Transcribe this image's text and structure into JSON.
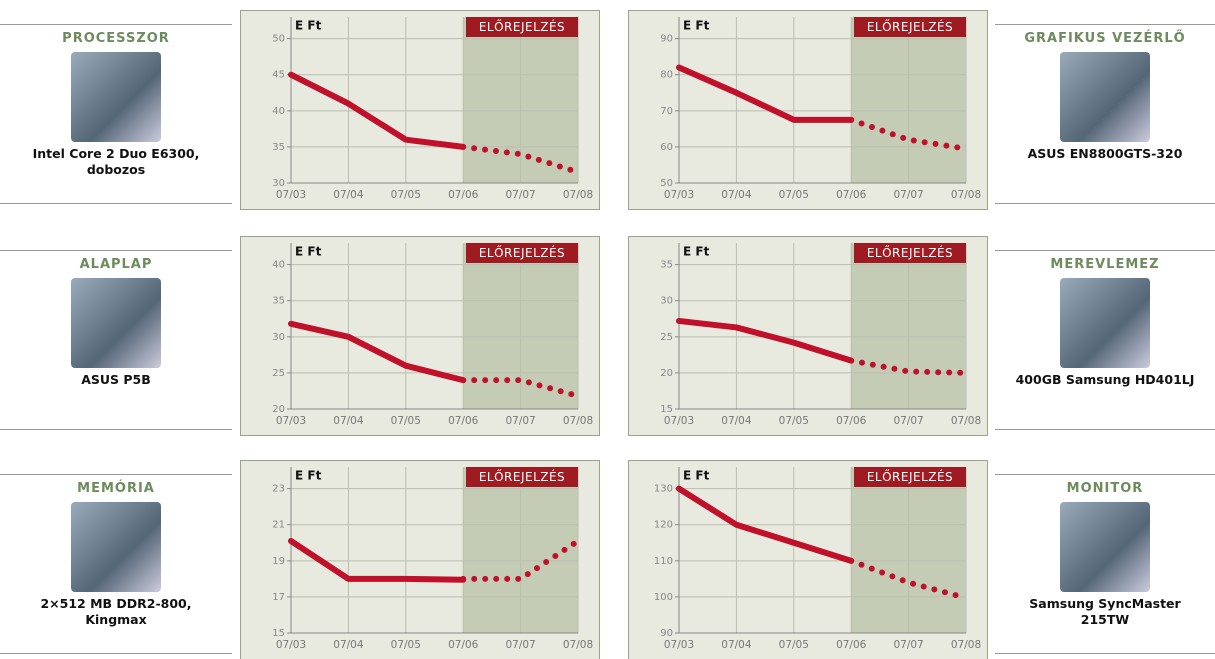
{
  "chart_data": [
    {
      "type": "line",
      "title": "PROCESSZOR",
      "subtitle": "Intel Core 2 Duo E6300, dobozos",
      "ylabel": "E Ft",
      "annotation": "ELŐREJELZÉS",
      "categories": [
        "07/03",
        "07/04",
        "07/05",
        "07/06",
        "07/07",
        "07/08"
      ],
      "ylim": [
        30,
        53
      ],
      "yticks": [
        30,
        35,
        40,
        45,
        50
      ],
      "grid": true,
      "series": [
        {
          "color": "#c0102a",
          "style": "solid",
          "values": [
            45,
            41,
            36,
            35,
            null,
            null
          ]
        },
        {
          "color": "#c0102a",
          "style": "dotted",
          "values": [
            null,
            null,
            null,
            35,
            34,
            31.5
          ]
        }
      ]
    },
    {
      "type": "line",
      "title": "GRAFIKUS VEZÉRLŐ",
      "subtitle": "ASUS EN8800GTS-320",
      "ylabel": "E Ft",
      "annotation": "ELŐREJELZÉS",
      "categories": [
        "07/03",
        "07/04",
        "07/05",
        "07/06",
        "07/07",
        "07/08"
      ],
      "ylim": [
        50,
        96
      ],
      "yticks": [
        50,
        60,
        70,
        80,
        90
      ],
      "grid": true,
      "series": [
        {
          "color": "#c0102a",
          "style": "solid",
          "values": [
            82,
            75,
            67.5,
            67.5,
            null,
            null
          ]
        },
        {
          "color": "#c0102a",
          "style": "dotted",
          "values": [
            null,
            null,
            null,
            67.5,
            62,
            59.5
          ]
        }
      ]
    },
    {
      "type": "line",
      "title": "ALAPLAP",
      "subtitle": "ASUS P5B",
      "ylabel": "E Ft",
      "annotation": "ELŐREJELZÉS",
      "categories": [
        "07/03",
        "07/04",
        "07/05",
        "07/06",
        "07/07",
        "07/08"
      ],
      "ylim": [
        20,
        43
      ],
      "yticks": [
        20,
        25,
        30,
        35,
        40
      ],
      "grid": true,
      "series": [
        {
          "color": "#c0102a",
          "style": "solid",
          "values": [
            31.8,
            30,
            26,
            24,
            null,
            null
          ]
        },
        {
          "color": "#c0102a",
          "style": "dotted",
          "values": [
            null,
            null,
            null,
            24,
            24,
            21.8
          ]
        }
      ]
    },
    {
      "type": "line",
      "title": "MEREVLEMEZ",
      "subtitle": "400GB Samsung HD401LJ",
      "ylabel": "E Ft",
      "annotation": "ELŐREJELZÉS",
      "categories": [
        "07/03",
        "07/04",
        "07/05",
        "07/06",
        "07/07",
        "07/08"
      ],
      "ylim": [
        15,
        38
      ],
      "yticks": [
        15,
        20,
        25,
        30,
        35
      ],
      "grid": true,
      "series": [
        {
          "color": "#c0102a",
          "style": "solid",
          "values": [
            27.2,
            26.3,
            24.2,
            21.7,
            null,
            null
          ]
        },
        {
          "color": "#c0102a",
          "style": "dotted",
          "values": [
            null,
            null,
            null,
            21.7,
            20.2,
            20
          ]
        }
      ]
    },
    {
      "type": "line",
      "title": "MEMÓRIA",
      "subtitle": "2×512 MB DDR2-800, Kingmax",
      "ylabel": "E Ft",
      "annotation": "ELŐREJELZÉS",
      "categories": [
        "07/03",
        "07/04",
        "07/05",
        "07/06",
        "07/07",
        "07/08"
      ],
      "ylim": [
        15,
        24.2
      ],
      "yticks": [
        15,
        17,
        19,
        21,
        23
      ],
      "grid": true,
      "series": [
        {
          "color": "#c0102a",
          "style": "solid",
          "values": [
            20.1,
            18,
            18,
            17.95,
            null,
            null
          ]
        },
        {
          "color": "#c0102a",
          "style": "dotted",
          "values": [
            null,
            null,
            null,
            18,
            18,
            20.1
          ]
        }
      ]
    },
    {
      "type": "line",
      "title": "MONITOR",
      "subtitle": "Samsung SyncMaster 215TW",
      "ylabel": "E Ft",
      "annotation": "ELŐREJELZÉS",
      "categories": [
        "07/03",
        "07/04",
        "07/05",
        "07/06",
        "07/07",
        "07/08"
      ],
      "ylim": [
        90,
        136
      ],
      "yticks": [
        90,
        100,
        110,
        120,
        130
      ],
      "grid": true,
      "series": [
        {
          "color": "#c0102a",
          "style": "solid",
          "values": [
            130,
            120,
            115,
            110,
            null,
            null
          ]
        },
        {
          "color": "#c0102a",
          "style": "dotted",
          "values": [
            null,
            null,
            null,
            110,
            104,
            99.7
          ]
        }
      ]
    }
  ]
}
